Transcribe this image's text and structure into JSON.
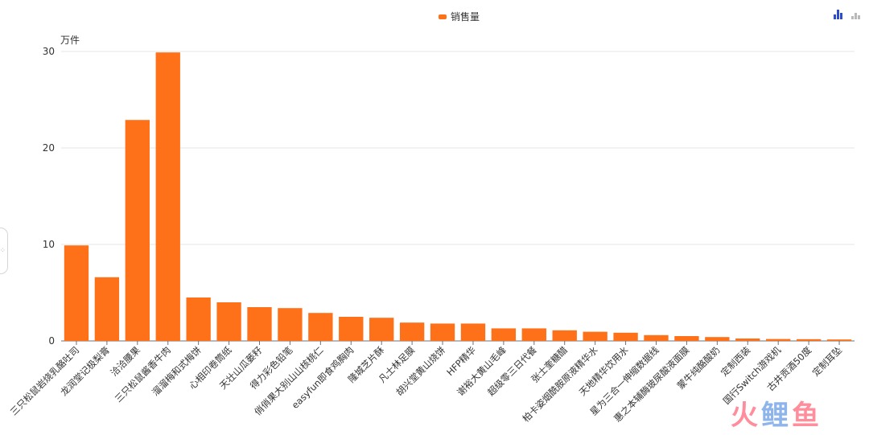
{
  "legend": {
    "label": "销售量",
    "color": "#ff7118"
  },
  "toolbox": {
    "icons": [
      "bar-chart-icon",
      "bar-chart-alt-icon"
    ]
  },
  "watermark": {
    "chars": [
      "火",
      "鲤",
      "鱼"
    ],
    "colors": [
      "#ff7a8a",
      "#7aa8e8",
      "#ff7a8a"
    ]
  },
  "chart_data": {
    "type": "bar",
    "ylabel": "万件",
    "ylim": [
      0,
      30
    ],
    "yticks": [
      0,
      10,
      20,
      30
    ],
    "grid": true,
    "legend_position": "top-center",
    "bar_color": "#ff7118",
    "categories": [
      "三只松鼠岩烧乳酪吐司",
      "龙润堂记极梨膏",
      "洽洽腰果",
      "三只松鼠酱香牛肉",
      "溜溜梅和式梅饼",
      "心相印卷筒纸",
      "天壮山瓜蒌籽",
      "得力彩色铅笔",
      "俏俏果大别山山核桃仁",
      "easyfun即食鸡胸肉",
      "隆城芝片酥",
      "凡士林足膜",
      "胡兴堂黄山烧饼",
      "HFP精华",
      "谢裕大黄山毛峰",
      "超级零三日代餐",
      "张士奎糖醋",
      "柏卡姿烟酰胺原液精华水",
      "天地精华饮用水",
      "星为三合一伸缩数据线",
      "惠之本辅酶玻尿酸液面膜",
      "蒙牛纯酪酸奶",
      "定制西装",
      "国行Switch游戏机",
      "古井贡酒50度",
      "定制耳坠"
    ],
    "series": [
      {
        "name": "销售量",
        "values": [
          9.9,
          6.6,
          22.9,
          29.9,
          4.5,
          4.0,
          3.5,
          3.4,
          2.9,
          2.5,
          2.4,
          1.9,
          1.8,
          1.8,
          1.3,
          1.3,
          1.1,
          0.95,
          0.85,
          0.6,
          0.5,
          0.4,
          0.25,
          0.2,
          0.18,
          0.15
        ]
      }
    ]
  }
}
